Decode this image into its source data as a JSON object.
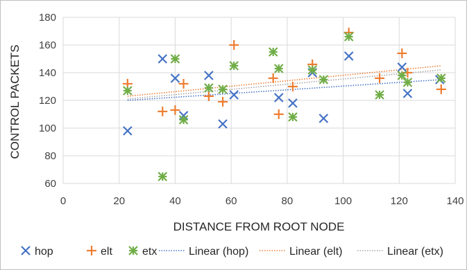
{
  "chart_data": {
    "type": "scatter",
    "title": "",
    "xlabel": "DISTANCE FROM ROOT NODE",
    "ylabel": "CONTROL PACKETS",
    "xlim": [
      0,
      140
    ],
    "ylim": [
      60,
      180
    ],
    "xticks": [
      "0",
      "20",
      "40",
      "60",
      "80",
      "100",
      "120",
      "140"
    ],
    "yticks": [
      "60",
      "80",
      "100",
      "120",
      "140",
      "160",
      "180"
    ],
    "grid": "horizontal and vertical",
    "legend_position": "bottom",
    "series": [
      {
        "name": "hop",
        "marker": "x",
        "color": "#4472c4",
        "points": [
          [
            23,
            98
          ],
          [
            35.5,
            150
          ],
          [
            40,
            136
          ],
          [
            43,
            109
          ],
          [
            52,
            138
          ],
          [
            57,
            103
          ],
          [
            61,
            124
          ],
          [
            77,
            122
          ],
          [
            82,
            118
          ],
          [
            89,
            140
          ],
          [
            93,
            107
          ],
          [
            102,
            152
          ],
          [
            121,
            144
          ],
          [
            123,
            125
          ],
          [
            134.5,
            135
          ]
        ]
      },
      {
        "name": "elt",
        "marker": "+",
        "color": "#ed7d31",
        "points": [
          [
            23,
            132
          ],
          [
            35.5,
            112
          ],
          [
            40,
            113
          ],
          [
            43,
            132
          ],
          [
            52,
            123
          ],
          [
            57,
            119
          ],
          [
            61,
            160
          ],
          [
            75,
            136
          ],
          [
            77,
            110
          ],
          [
            82,
            130
          ],
          [
            89,
            146
          ],
          [
            102,
            169
          ],
          [
            113,
            136
          ],
          [
            121,
            154
          ],
          [
            123,
            140
          ],
          [
            135,
            128
          ]
        ]
      },
      {
        "name": "etx",
        "marker": "x+",
        "color": "#70ad47",
        "points": [
          [
            23,
            127
          ],
          [
            35.5,
            65
          ],
          [
            40,
            150
          ],
          [
            43,
            106
          ],
          [
            52,
            129
          ],
          [
            57,
            128
          ],
          [
            61,
            145
          ],
          [
            75,
            155
          ],
          [
            77,
            143
          ],
          [
            82,
            108
          ],
          [
            89,
            142
          ],
          [
            93,
            135
          ],
          [
            102,
            166
          ],
          [
            113,
            124
          ],
          [
            121,
            138
          ],
          [
            123,
            133
          ],
          [
            135,
            136
          ]
        ]
      }
    ],
    "trendlines": [
      {
        "name": "Linear (hop)",
        "color": "#4472c4",
        "x": [
          23,
          135
        ],
        "y": [
          120,
          135
        ]
      },
      {
        "name": "Linear (elt)",
        "color": "#ed7d31",
        "x": [
          23,
          135
        ],
        "y": [
          123,
          145
        ]
      },
      {
        "name": "Linear (etx)",
        "color": "#a5a5a5",
        "x": [
          23,
          135
        ],
        "y": [
          121,
          142
        ]
      }
    ],
    "legend": [
      "hop",
      "elt",
      "etx",
      "Linear (hop)",
      "Linear (elt)",
      "Linear (etx)"
    ]
  }
}
